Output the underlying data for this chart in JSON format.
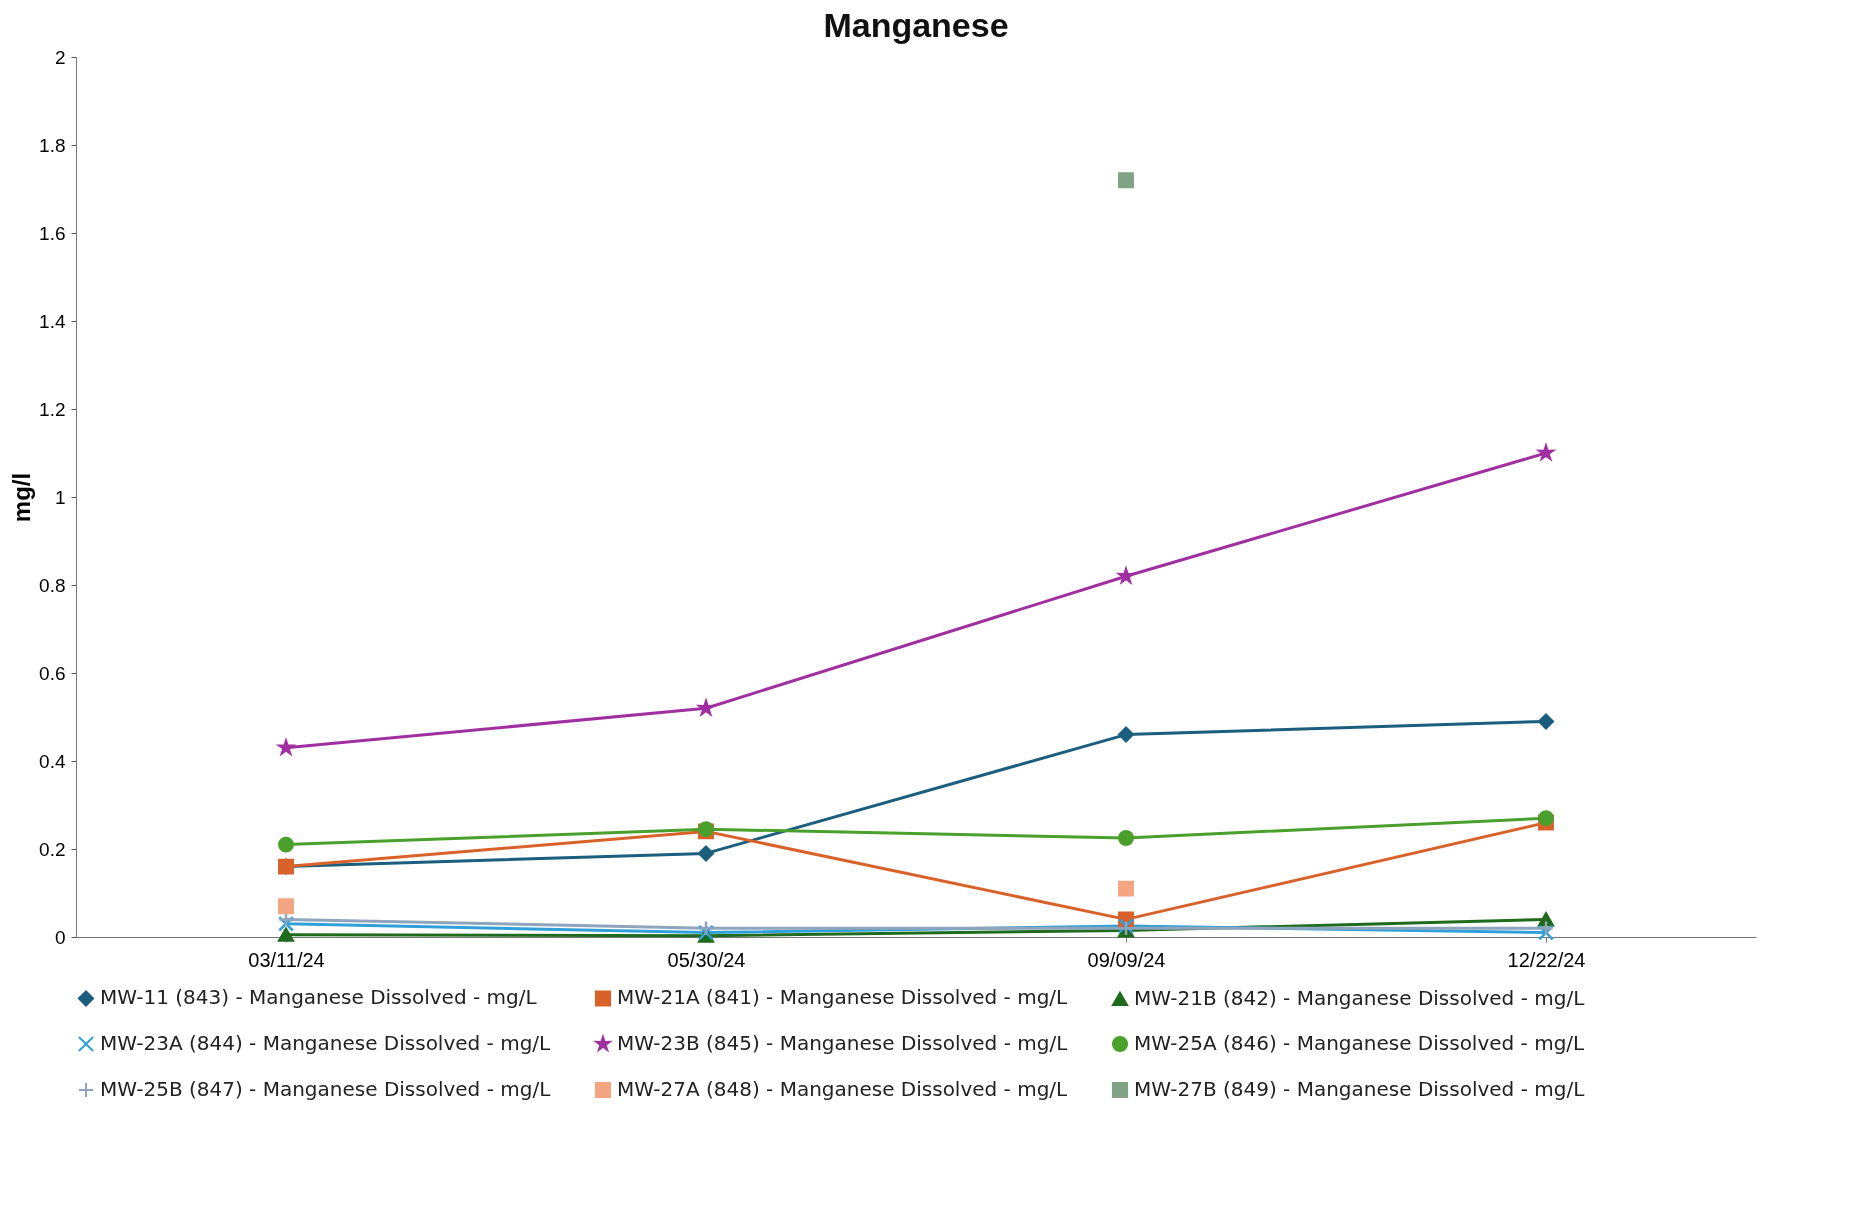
{
  "chart_data": {
    "type": "line",
    "title": "Manganese",
    "ylabel": "mg/l",
    "categories": [
      "03/11/24",
      "05/30/24",
      "09/09/24",
      "12/22/24"
    ],
    "ylim": [
      0,
      2
    ],
    "yticks": [
      0,
      0.2,
      0.4,
      0.6,
      0.8,
      1,
      1.2,
      1.4,
      1.6,
      1.8,
      2
    ],
    "grid": false,
    "legend": "bottom",
    "series": [
      {
        "name": "MW-11 (843) - Manganese Dissolved - mg/L",
        "color": "#1b5e7e",
        "marker": "diamond",
        "values": [
          0.16,
          0.19,
          0.46,
          0.49
        ]
      },
      {
        "name": "MW-21A (841) - Manganese Dissolved - mg/L",
        "color": "#d9622b",
        "marker": "square",
        "values": [
          0.16,
          0.24,
          0.04,
          0.26
        ]
      },
      {
        "name": "MW-21B (842) - Manganese Dissolved - mg/L",
        "color": "#1e6b1e",
        "marker": "triangle",
        "values": [
          0.005,
          0.003,
          0.015,
          0.04
        ]
      },
      {
        "name": "MW-23A (844) - Manganese Dissolved - mg/L",
        "color": "#2fa0d8",
        "marker": "x",
        "values": [
          0.03,
          0.01,
          0.025,
          0.01
        ]
      },
      {
        "name": "MW-23B (845) - Manganese Dissolved - mg/L",
        "color": "#a02fa0",
        "marker": "star",
        "values": [
          0.43,
          0.52,
          0.82,
          1.1
        ]
      },
      {
        "name": "MW-25A (846) - Manganese Dissolved - mg/L",
        "color": "#4aa02c",
        "marker": "circle",
        "values": [
          0.21,
          0.245,
          0.225,
          0.27
        ]
      },
      {
        "name": "MW-25B (847) - Manganese Dissolved - mg/L",
        "color": "#8ea5bd",
        "marker": "cross",
        "values": [
          0.04,
          0.02,
          0.02,
          0.02
        ]
      },
      {
        "name": "MW-27A (848) - Manganese Dissolved - mg/L",
        "color": "#f4a582",
        "type": "scatter",
        "marker": "square",
        "values": [
          0.07,
          null,
          0.11,
          null
        ]
      },
      {
        "name": "MW-27B (849) - Manganese Dissolved - mg/L",
        "color": "#7fa383",
        "type": "scatter",
        "marker": "square",
        "values": [
          null,
          null,
          1.72,
          null
        ]
      }
    ]
  }
}
